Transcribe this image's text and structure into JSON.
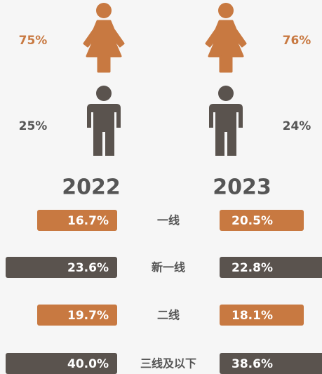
{
  "gender": [
    {
      "female": "75%",
      "male": "25%"
    },
    {
      "female": "76%",
      "male": "24%"
    }
  ],
  "years": [
    "2022",
    "2023"
  ],
  "tiers": [
    {
      "label": "一线",
      "left": "16.7%",
      "right": "20.5%"
    },
    {
      "label": "新一线",
      "left": "23.6%",
      "right": "22.8%"
    },
    {
      "label": "二线",
      "left": "19.7%",
      "right": "18.1%"
    },
    {
      "label": "三线及以下",
      "left": "40.0%",
      "right": "38.6%"
    }
  ]
}
